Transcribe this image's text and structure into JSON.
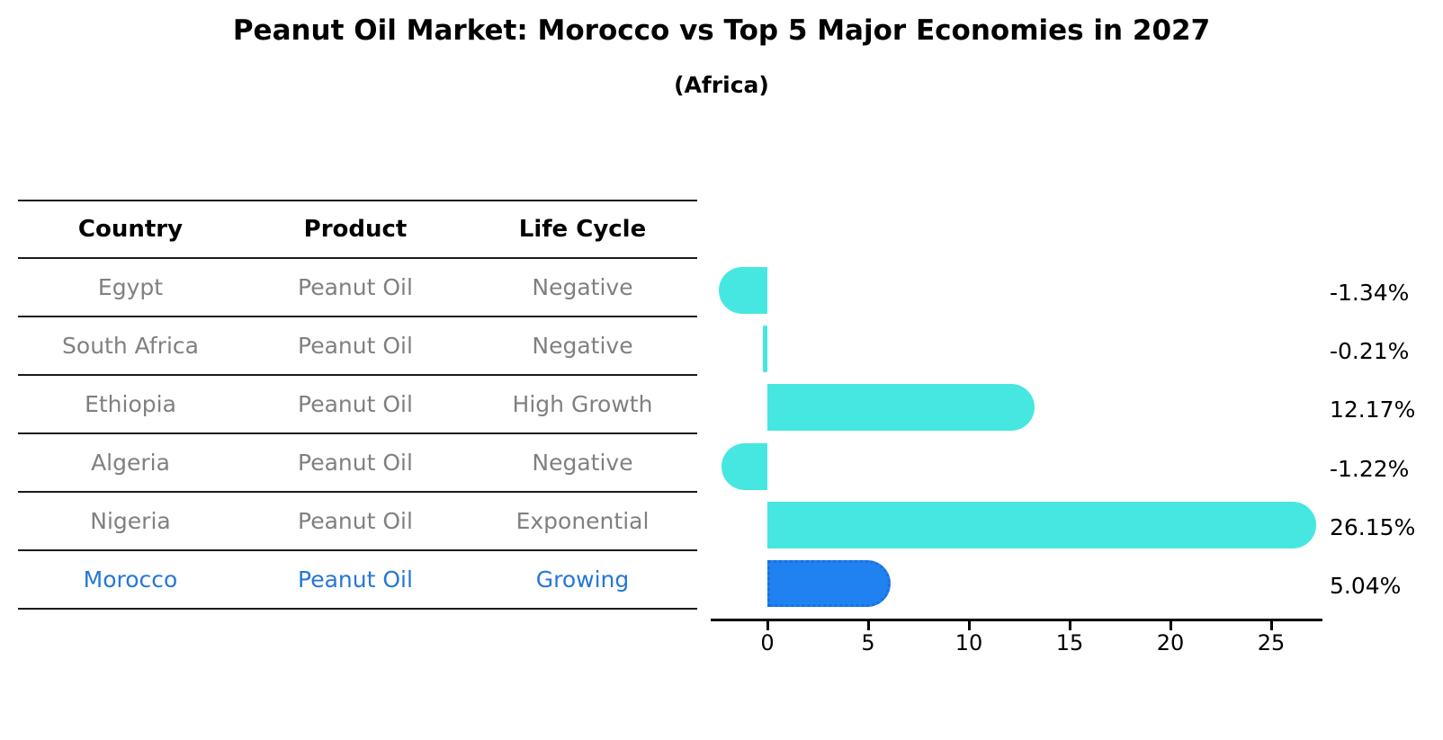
{
  "title": "Peanut Oil Market: Morocco vs Top 5 Major Economies in 2027",
  "subtitle": "(Africa)",
  "table": {
    "headers": [
      "Country",
      "Product",
      "Life Cycle"
    ],
    "rows": [
      {
        "country": "Egypt",
        "product": "Peanut Oil",
        "life_cycle": "Negative",
        "highlight": false
      },
      {
        "country": "South Africa",
        "product": "Peanut Oil",
        "life_cycle": "Negative",
        "highlight": false
      },
      {
        "country": "Ethiopia",
        "product": "Peanut Oil",
        "life_cycle": "High Growth",
        "highlight": false
      },
      {
        "country": "Algeria",
        "product": "Peanut Oil",
        "life_cycle": "Negative",
        "highlight": false
      },
      {
        "country": "Nigeria",
        "product": "Peanut Oil",
        "life_cycle": "Exponential",
        "highlight": false
      },
      {
        "country": "Morocco",
        "product": "Peanut Oil",
        "life_cycle": "Growing",
        "highlight": true
      }
    ]
  },
  "chart_data": {
    "type": "bar",
    "orientation": "horizontal",
    "title": "Peanut Oil Market: Morocco vs Top 5 Major Economies in 2027",
    "subtitle": "(Africa)",
    "categories": [
      "Egypt",
      "South Africa",
      "Ethiopia",
      "Algeria",
      "Nigeria",
      "Morocco"
    ],
    "values": [
      -1.34,
      -0.21,
      12.17,
      -1.22,
      26.15,
      5.04
    ],
    "value_labels": [
      "-1.34%",
      "-0.21%",
      "12.17%",
      "-1.22%",
      "26.15%",
      "5.04%"
    ],
    "x_ticks": [
      0,
      5,
      10,
      15,
      20,
      25
    ],
    "x_tick_labels": [
      "0",
      "5",
      "10",
      "15",
      "20",
      "25"
    ],
    "xlim": [
      -2.8,
      27.5
    ],
    "grid": false,
    "legend": null,
    "highlight_index": 5,
    "bar_color": "#45e7e0",
    "highlight_bar_color": "#2082f0",
    "highlight_text_color": "#2577d8",
    "row_text_color": "#808080"
  }
}
